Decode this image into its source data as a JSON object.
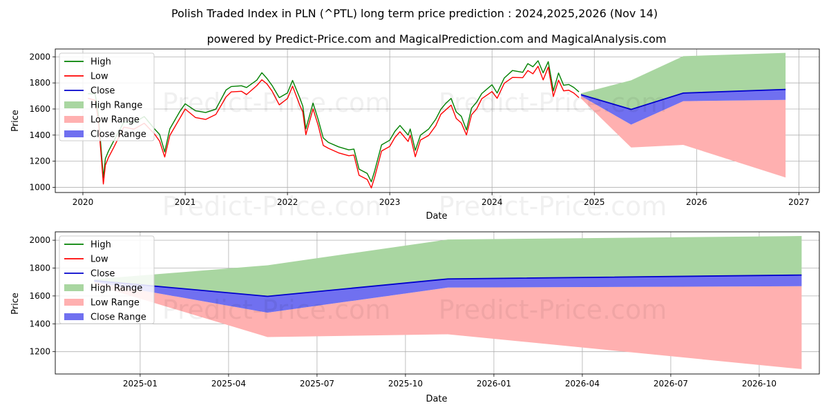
{
  "chart_data": [
    {
      "type": "line",
      "panel": "top",
      "title": "Polish Traded Index in PLN (^PTL) long term price prediction : 2024,2025,2026 (Nov 14)",
      "subtitle": "powered by Predict-Price.com and MagicalPrediction.com and MagicalAnalysis.com",
      "watermark": "Predict-Price.com",
      "xlabel": "Date",
      "ylabel": "Price",
      "xlim": [
        2019.73,
        2027.2
      ],
      "ylim": [
        960,
        2060
      ],
      "x_ticks": [
        2020,
        2021,
        2022,
        2023,
        2024,
        2025,
        2026,
        2027
      ],
      "x_tick_labels": [
        "2020",
        "2021",
        "2022",
        "2023",
        "2024",
        "2025",
        "2026",
        "2027"
      ],
      "y_ticks": [
        1000,
        1200,
        1400,
        1600,
        1800,
        2000
      ],
      "y_tick_labels": [
        "1000",
        "1200",
        "1400",
        "1600",
        "1800",
        "2000"
      ],
      "grid": true,
      "legend_position": "upper-left",
      "legend": [
        "High",
        "Low",
        "Close",
        "High Range",
        "Low Range",
        "Close Range"
      ],
      "history": {
        "x": [
          2020.05,
          2020.12,
          2020.15,
          2020.18,
          2020.2,
          2020.22,
          2020.25,
          2020.3,
          2020.4,
          2020.5,
          2020.6,
          2020.7,
          2020.75,
          2020.8,
          2020.85,
          2020.95,
          2021.0,
          2021.1,
          2021.2,
          2021.3,
          2021.4,
          2021.45,
          2021.55,
          2021.6,
          2021.7,
          2021.75,
          2021.8,
          2021.85,
          2021.92,
          2022.0,
          2022.05,
          2022.12,
          2022.15,
          2022.18,
          2022.25,
          2022.3,
          2022.35,
          2022.4,
          2022.5,
          2022.6,
          2022.65,
          2022.7,
          2022.78,
          2022.82,
          2022.85,
          2022.92,
          2023.0,
          2023.05,
          2023.1,
          2023.18,
          2023.2,
          2023.25,
          2023.3,
          2023.38,
          2023.45,
          2023.5,
          2023.55,
          2023.6,
          2023.65,
          2023.7,
          2023.75,
          2023.8,
          2023.85,
          2023.9,
          2024.0,
          2024.05,
          2024.12,
          2024.2,
          2024.3,
          2024.35,
          2024.4,
          2024.45,
          2024.5,
          2024.55,
          2024.6,
          2024.65,
          2024.7,
          2024.75,
          2024.8,
          2024.85
        ],
        "close": [
          1700,
          1690,
          1550,
          1250,
          1050,
          1200,
          1250,
          1330,
          1480,
          1470,
          1520,
          1430,
          1380,
          1250,
          1420,
          1560,
          1620,
          1560,
          1550,
          1580,
          1720,
          1750,
          1760,
          1740,
          1800,
          1850,
          1810,
          1760,
          1660,
          1700,
          1800,
          1660,
          1600,
          1430,
          1620,
          1500,
          1350,
          1320,
          1290,
          1260,
          1270,
          1120,
          1080,
          1020,
          1100,
          1300,
          1340,
          1400,
          1450,
          1380,
          1420,
          1260,
          1380,
          1420,
          1500,
          1580,
          1620,
          1660,
          1550,
          1520,
          1420,
          1580,
          1630,
          1700,
          1760,
          1700,
          1820,
          1870,
          1860,
          1920,
          1900,
          1950,
          1850,
          1940,
          1720,
          1850,
          1760,
          1770,
          1740,
          1710
        ]
      },
      "forecast": {
        "x": [
          2024.87,
          2025.36,
          2025.87,
          2026.87
        ],
        "high_range_upper": [
          1720,
          1820,
          2005,
          2030
        ],
        "high_range_lower": [
          1700,
          1600,
          1720,
          1750
        ],
        "low_range_upper": [
          1700,
          1480,
          1660,
          1670
        ],
        "low_range_lower": [
          1680,
          1305,
          1325,
          1075
        ],
        "close": [
          1710,
          1597,
          1722,
          1750
        ],
        "close_range_upper": [
          1710,
          1597,
          1722,
          1750
        ],
        "close_range_lower": [
          1700,
          1480,
          1660,
          1670
        ]
      },
      "colors": {
        "high": "#008000",
        "low": "#ff0000",
        "close": "#0000cc",
        "high_range": "#a9d6a1",
        "low_range": "#ffb0b0",
        "close_range": "#7070f0"
      }
    },
    {
      "type": "line",
      "panel": "bottom",
      "watermark": "Predict-Price.com",
      "xlabel": "Date",
      "ylabel": "Price",
      "xlim": [
        2024.76,
        2026.92
      ],
      "ylim": [
        1040,
        2060
      ],
      "x_ticks": [
        2025.0,
        2025.25,
        2025.5,
        2025.75,
        2026.0,
        2026.25,
        2026.5,
        2026.75
      ],
      "x_tick_labels": [
        "2025-01",
        "2025-04",
        "2025-07",
        "2025-10",
        "2026-01",
        "2026-04",
        "2026-07",
        "2026-10"
      ],
      "y_ticks": [
        1200,
        1400,
        1600,
        1800,
        2000
      ],
      "y_tick_labels": [
        "1200",
        "1400",
        "1600",
        "1800",
        "2000"
      ],
      "grid": true,
      "legend_position": "upper-left",
      "legend": [
        "High",
        "Low",
        "Close",
        "High Range",
        "Low Range",
        "Close Range"
      ],
      "forecast": {
        "x": [
          2024.87,
          2025.36,
          2025.87,
          2026.87
        ],
        "high_range_upper": [
          1720,
          1820,
          2005,
          2030
        ],
        "high_range_lower": [
          1700,
          1600,
          1720,
          1750
        ],
        "low_range_upper": [
          1700,
          1480,
          1660,
          1670
        ],
        "low_range_lower": [
          1680,
          1305,
          1325,
          1075
        ],
        "close": [
          1710,
          1597,
          1722,
          1750
        ],
        "close_range_upper": [
          1710,
          1597,
          1722,
          1750
        ],
        "close_range_lower": [
          1700,
          1480,
          1660,
          1670
        ]
      },
      "colors": {
        "high": "#008000",
        "low": "#ff0000",
        "close": "#0000cc",
        "high_range": "#a9d6a1",
        "low_range": "#ffb0b0",
        "close_range": "#7070f0"
      }
    }
  ]
}
